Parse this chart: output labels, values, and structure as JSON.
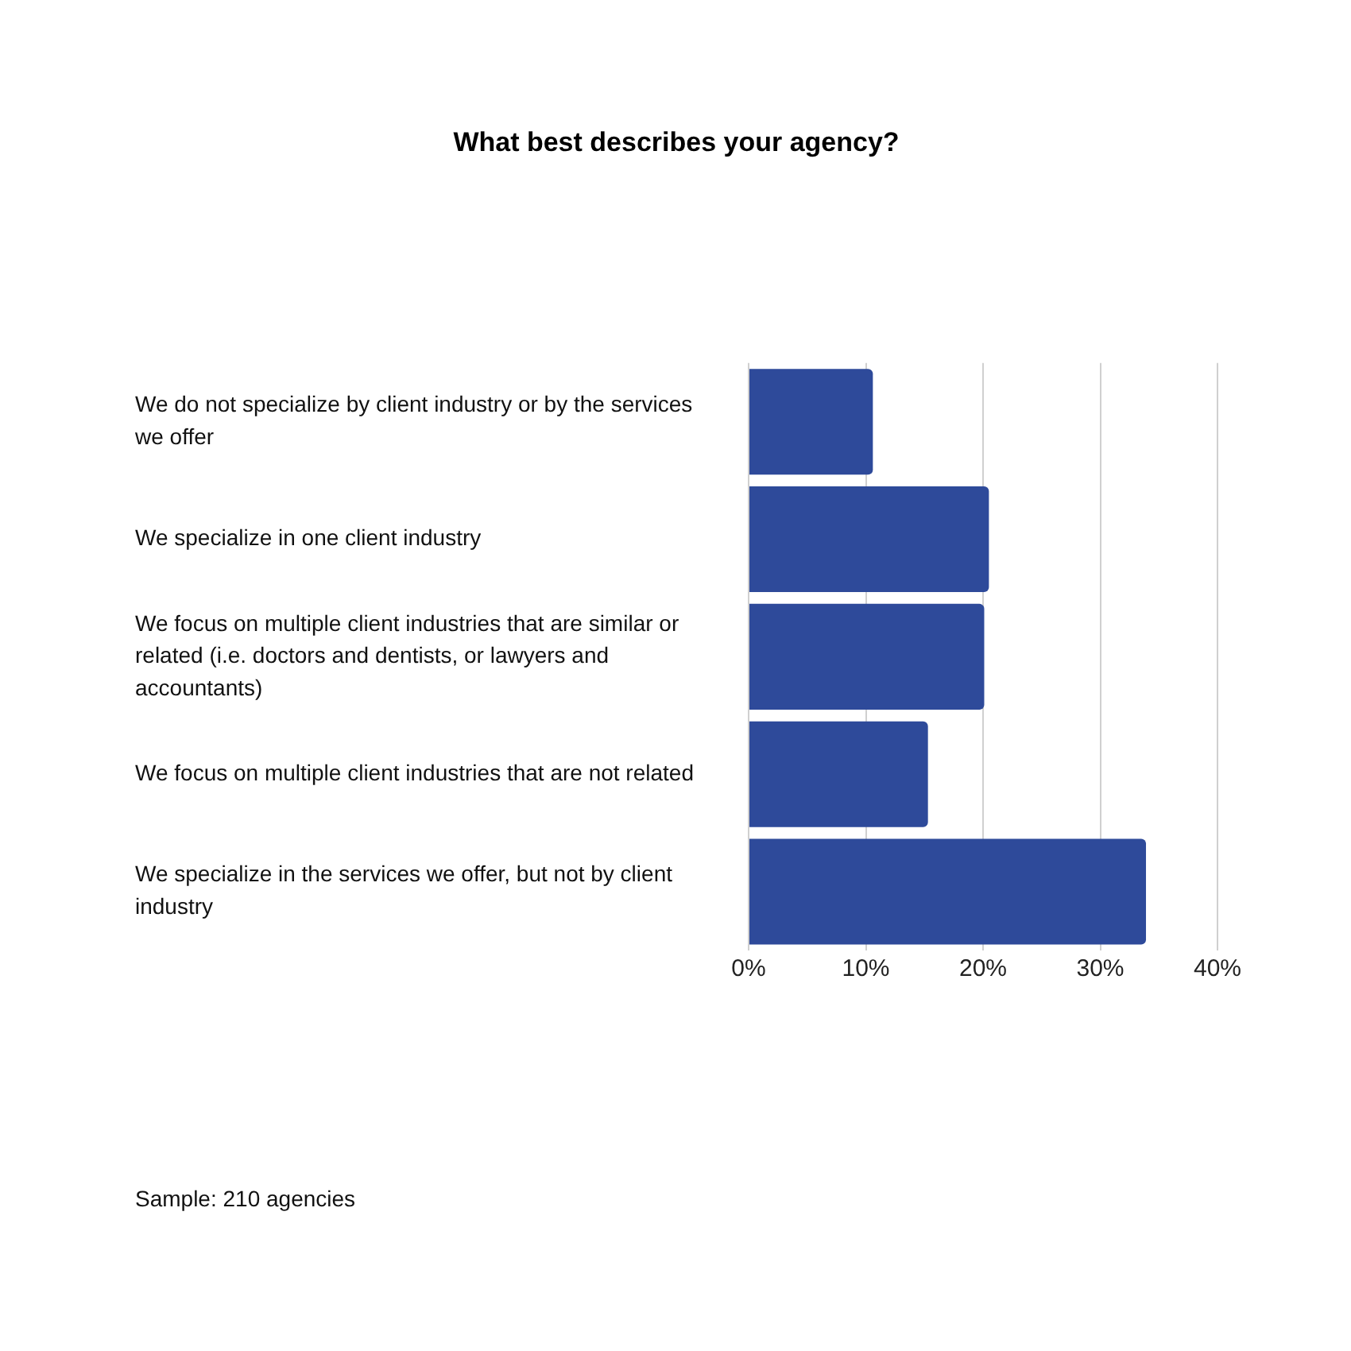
{
  "chart_data": {
    "type": "bar",
    "orientation": "horizontal",
    "title": "What best describes your agency?",
    "categories": [
      "We do not specialize by client industry or by the services we offer",
      "We specialize in one client industry",
      "We focus on multiple client industries that are similar or related (i.e. doctors and dentists, or lawyers and accountants)",
      "We focus on multiple client industries that are not related",
      "We specialize in the services we offer, but not by client industry"
    ],
    "values": [
      10.6,
      20.5,
      20.1,
      15.3,
      33.9
    ],
    "color": "#2e4a9a",
    "xlim": [
      0,
      40
    ],
    "xticks": [
      {
        "value": 0,
        "label": "0%"
      },
      {
        "value": 10,
        "label": "10%"
      },
      {
        "value": 20,
        "label": "20%"
      },
      {
        "value": 30,
        "label": "30%"
      },
      {
        "value": 40,
        "label": "40%"
      }
    ],
    "grid": "x",
    "legend": false,
    "annotations": [
      "Sample: 210 agencies"
    ]
  }
}
